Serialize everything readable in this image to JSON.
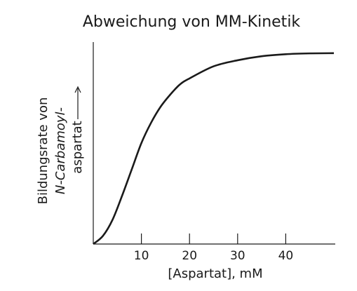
{
  "chart_data": {
    "type": "line",
    "title": "Abweichung von MM-Kinetik",
    "x_label": "[Aspartat], mM",
    "y_label": [
      "Bildungsrate von",
      "N-Carbamoyl-",
      "aspartat"
    ],
    "x": [
      0,
      2,
      4,
      6,
      8,
      10,
      12,
      14,
      16,
      18,
      20,
      25,
      30,
      35,
      40,
      45,
      50
    ],
    "values": [
      0,
      0.04,
      0.12,
      0.24,
      0.37,
      0.5,
      0.6,
      0.68,
      0.74,
      0.79,
      0.82,
      0.88,
      0.91,
      0.93,
      0.94,
      0.944,
      0.945
    ],
    "color": "#1a1a1a",
    "xlim": [
      0,
      50
    ],
    "ylim": [
      0,
      1
    ],
    "xticks": [
      10,
      20,
      30,
      40
    ]
  }
}
